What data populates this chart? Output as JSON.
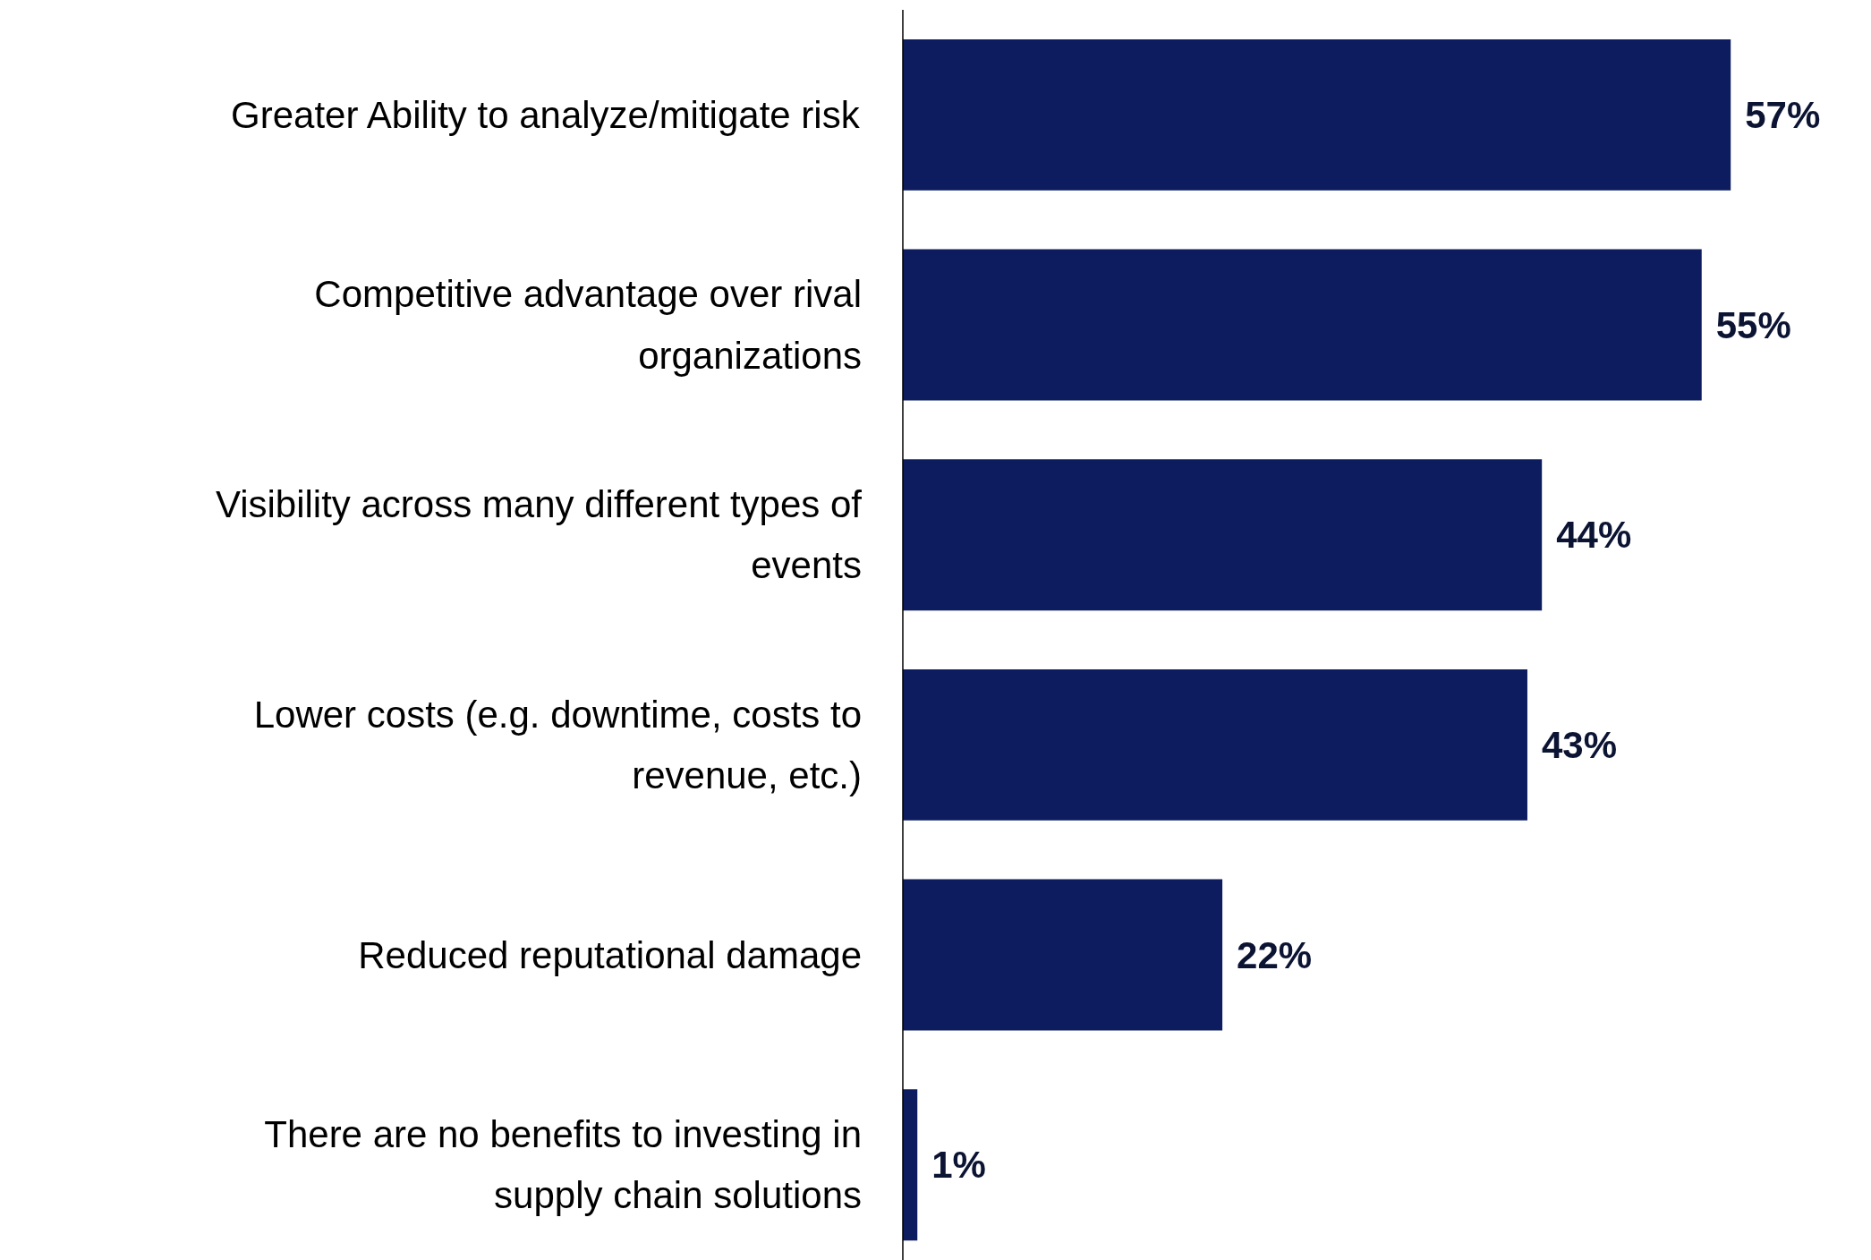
{
  "chart_data": {
    "type": "bar",
    "orientation": "horizontal",
    "categories": [
      "Greater Ability to analyze/mitigate risk",
      "Competitive advantage over rival organizations",
      "Visibility across many different types of events",
      "Lower costs (e.g. downtime, costs to revenue, etc.)",
      "Reduced reputational damage",
      "There are no benefits to investing in supply chain solutions"
    ],
    "values": [
      57,
      55,
      44,
      43,
      22,
      1
    ],
    "value_labels": [
      "57%",
      "55%",
      "44%",
      "43%",
      "22%",
      "1%"
    ],
    "color": "#0c1c5e",
    "grid": false
  }
}
